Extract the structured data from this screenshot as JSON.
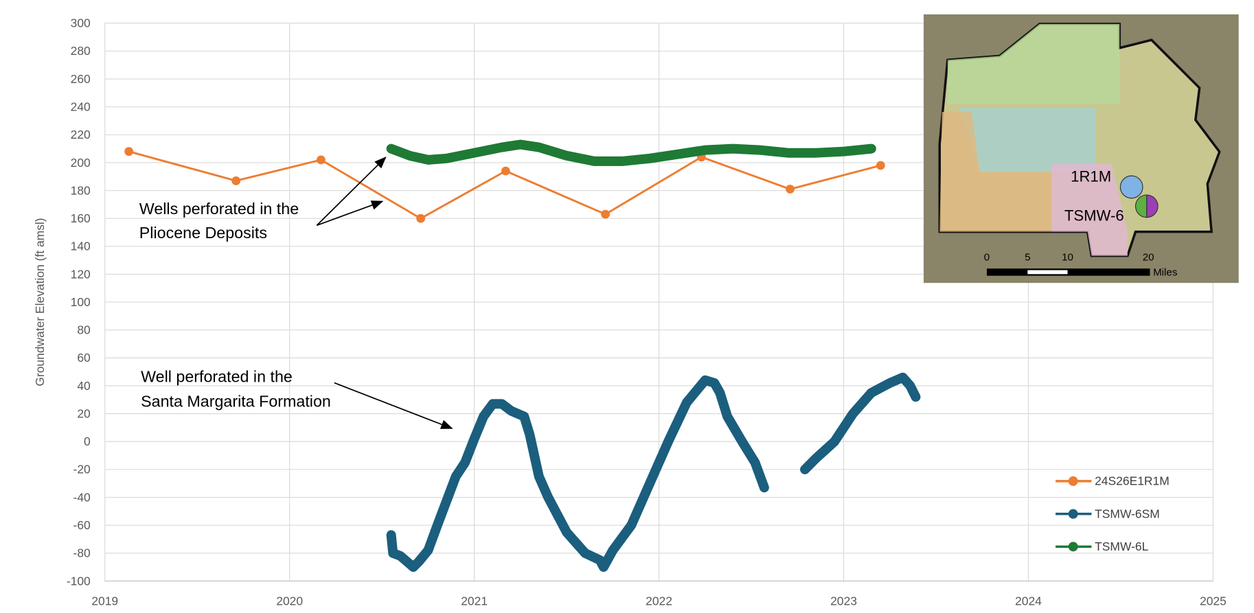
{
  "chart_data": {
    "type": "line",
    "ylabel": "Groundwater Elevation (ft amsl)",
    "xlim": [
      2019,
      2025
    ],
    "xticks": [
      2019,
      2020,
      2021,
      2022,
      2023,
      2024,
      2025
    ],
    "ylim": [
      -100,
      300
    ],
    "yticks": [
      -100,
      -80,
      -60,
      -40,
      -20,
      0,
      20,
      40,
      60,
      80,
      100,
      120,
      140,
      160,
      180,
      200,
      220,
      240,
      260,
      280,
      300
    ],
    "grid": true,
    "legend": "right",
    "series": [
      {
        "name": "24S26E1R1M",
        "color": "#ed7d31",
        "markers": true,
        "x": [
          2019.13,
          2019.71,
          2020.17,
          2020.71,
          2021.17,
          2021.71,
          2022.23,
          2022.71,
          2023.2
        ],
        "values": [
          208,
          187,
          202,
          160,
          194,
          163,
          204,
          181,
          198
        ]
      },
      {
        "name": "TSMW-6SM",
        "color": "#1b5e7e",
        "markers": false,
        "x": [
          2020.55,
          2020.56,
          2020.6,
          2020.67,
          2020.7,
          2020.75,
          2020.8,
          2020.9,
          2020.95,
          2021.0,
          2021.05,
          2021.1,
          2021.15,
          2021.2,
          2021.27,
          2021.3,
          2021.35,
          2021.4,
          2021.5,
          2021.6,
          2021.68,
          2021.7,
          2021.75,
          2021.85,
          2021.95,
          2022.05,
          2022.15,
          2022.25,
          2022.3,
          2022.33,
          2022.37,
          2022.45,
          2022.52,
          2022.57,
          2022.68,
          2022.79,
          2022.85,
          2022.95,
          2023.05,
          2023.15,
          2023.25,
          2023.32,
          2023.36,
          2023.39
        ],
        "values": [
          -67,
          -80,
          -82,
          -90,
          -86,
          -78,
          -60,
          -25,
          -15,
          2,
          18,
          27,
          27,
          22,
          18,
          5,
          -25,
          -40,
          -65,
          -80,
          -85,
          -90,
          -78,
          -60,
          -30,
          0,
          28,
          44,
          42,
          35,
          18,
          0,
          -15,
          -33,
          null,
          -20,
          -12,
          0,
          20,
          35,
          42,
          46,
          40,
          32
        ]
      },
      {
        "name": "TSMW-6L",
        "color": "#1e7a34",
        "markers": false,
        "x": [
          2020.55,
          2020.65,
          2020.75,
          2020.85,
          2021.0,
          2021.15,
          2021.25,
          2021.35,
          2021.5,
          2021.65,
          2021.8,
          2021.95,
          2022.1,
          2022.25,
          2022.4,
          2022.55,
          2022.7,
          2022.85,
          2023.0,
          2023.15
        ],
        "values": [
          210,
          205,
          202,
          203,
          207,
          211,
          213,
          211,
          205,
          201,
          201,
          203,
          206,
          209,
          210,
          209,
          207,
          207,
          208,
          210
        ]
      }
    ],
    "annotations": [
      {
        "lines": [
          "Wells perforated in the",
          "Pliocene Deposits"
        ]
      },
      {
        "lines": [
          "Well perforated in the",
          "Santa Margarita Formation"
        ]
      }
    ],
    "map": {
      "labels": [
        "1R1M",
        "TSMW-6"
      ],
      "scale": [
        "0",
        "5",
        "10",
        "20",
        "Miles"
      ]
    }
  }
}
